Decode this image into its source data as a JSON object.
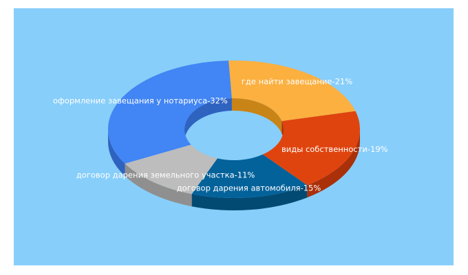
{
  "chart_data": {
    "type": "pie",
    "style": "3d-donut",
    "background": "#87cefa",
    "slices": [
      {
        "label": "оформление завещания у нотариуса-32%",
        "value": 32,
        "color": "#4285f4",
        "side": "#2f63c0"
      },
      {
        "label": "где найти завещание-21%",
        "value": 21,
        "color": "#fbb040",
        "side": "#c98417"
      },
      {
        "label": "виды собственности-19%",
        "value": 19,
        "color": "#e0440e",
        "side": "#a93009"
      },
      {
        "label": "договор дарения автомобиля-15%",
        "value": 15,
        "color": "#04629a",
        "side": "#034a73"
      },
      {
        "label": "договор дарения земельного участка-11%",
        "value": 11,
        "color": "#bdbdbd",
        "side": "#8f8f8f"
      }
    ]
  }
}
